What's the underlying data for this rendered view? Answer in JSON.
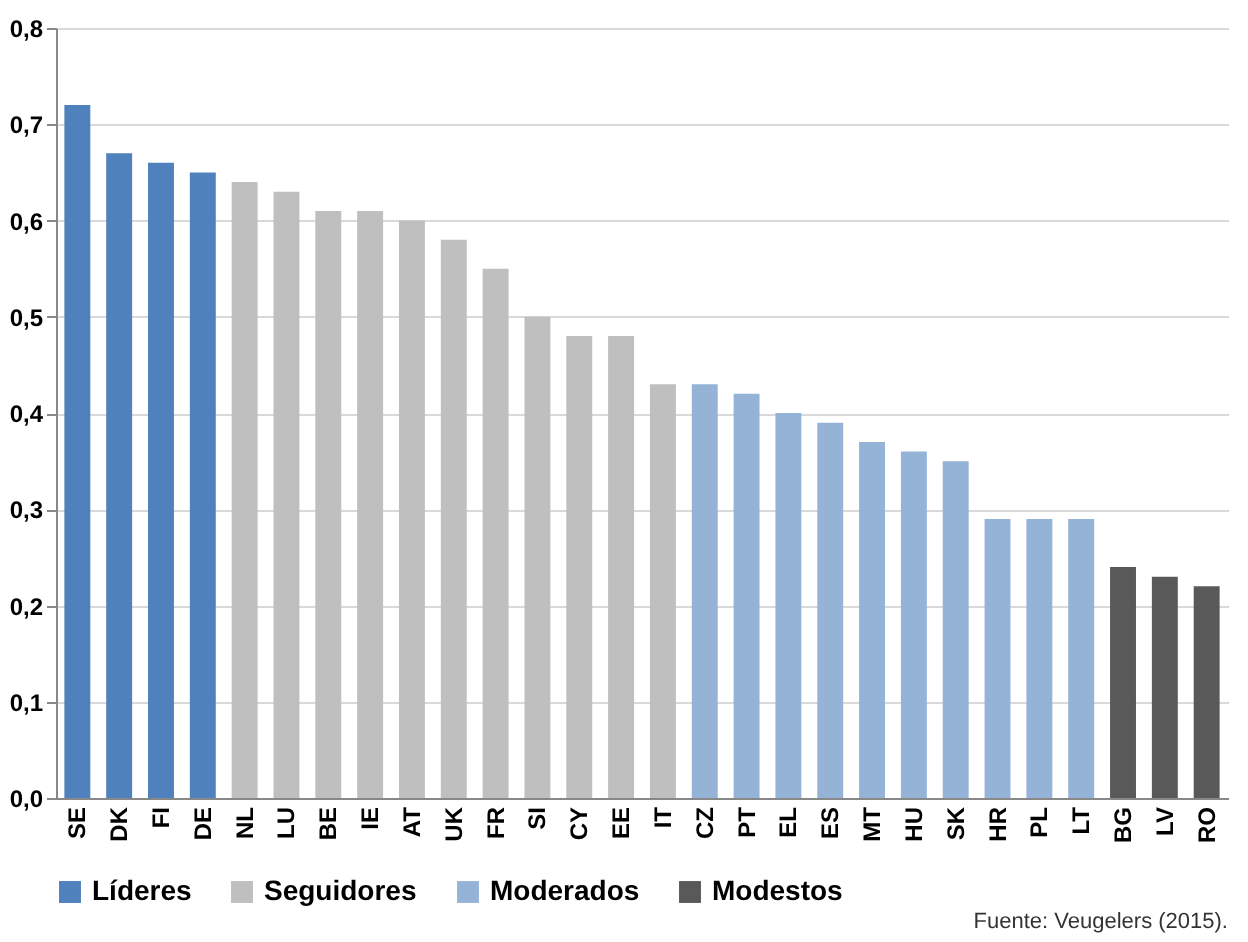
{
  "chart_data": {
    "type": "bar",
    "categories": [
      "SE",
      "DK",
      "FI",
      "DE",
      "NL",
      "LU",
      "BE",
      "IE",
      "AT",
      "UK",
      "FR",
      "SI",
      "CY",
      "EE",
      "IT",
      "CZ",
      "PT",
      "EL",
      "ES",
      "MT",
      "HU",
      "SK",
      "HR",
      "PL",
      "LT",
      "BG",
      "LV",
      "RO"
    ],
    "series": [
      {
        "name": "Líderes",
        "color": "#4f81bd",
        "values": [
          0.72,
          0.67,
          0.66,
          0.65,
          null,
          null,
          null,
          null,
          null,
          null,
          null,
          null,
          null,
          null,
          null,
          null,
          null,
          null,
          null,
          null,
          null,
          null,
          null,
          null,
          null,
          null,
          null,
          null
        ]
      },
      {
        "name": "Seguidores",
        "color": "#bfbfbf",
        "values": [
          null,
          null,
          null,
          null,
          0.64,
          0.63,
          0.61,
          0.61,
          0.6,
          0.58,
          0.55,
          0.5,
          0.48,
          0.48,
          0.43,
          null,
          null,
          null,
          null,
          null,
          null,
          null,
          null,
          null,
          null,
          null,
          null,
          null
        ]
      },
      {
        "name": "Moderados",
        "color": "#95b3d7",
        "values": [
          null,
          null,
          null,
          null,
          null,
          null,
          null,
          null,
          null,
          null,
          null,
          null,
          null,
          null,
          null,
          0.43,
          0.42,
          0.4,
          0.39,
          0.37,
          0.36,
          0.35,
          0.29,
          0.29,
          0.29,
          null,
          null,
          null
        ]
      },
      {
        "name": "Modestos",
        "color": "#595959",
        "values": [
          null,
          null,
          null,
          null,
          null,
          null,
          null,
          null,
          null,
          null,
          null,
          null,
          null,
          null,
          null,
          null,
          null,
          null,
          null,
          null,
          null,
          null,
          null,
          null,
          null,
          0.24,
          0.23,
          0.22
        ]
      }
    ],
    "ylim": [
      0,
      0.8
    ],
    "yticks": [
      {
        "value": 0,
        "label": "0,0"
      },
      {
        "value": 0.1,
        "label": "0,1"
      },
      {
        "value": 0.2,
        "label": "0,2"
      },
      {
        "value": 0.3,
        "label": "0,3"
      },
      {
        "value": 0.4,
        "label": "0,4"
      },
      {
        "value": 0.5,
        "label": "0,5"
      },
      {
        "value": 0.6,
        "label": "0,6"
      },
      {
        "value": 0.7,
        "label": "0,7"
      },
      {
        "value": 0.8,
        "label": "0,8"
      }
    ],
    "grid": "y",
    "legend": "bottom",
    "annotations": [
      "Fuente: Veugelers (2015)."
    ]
  }
}
